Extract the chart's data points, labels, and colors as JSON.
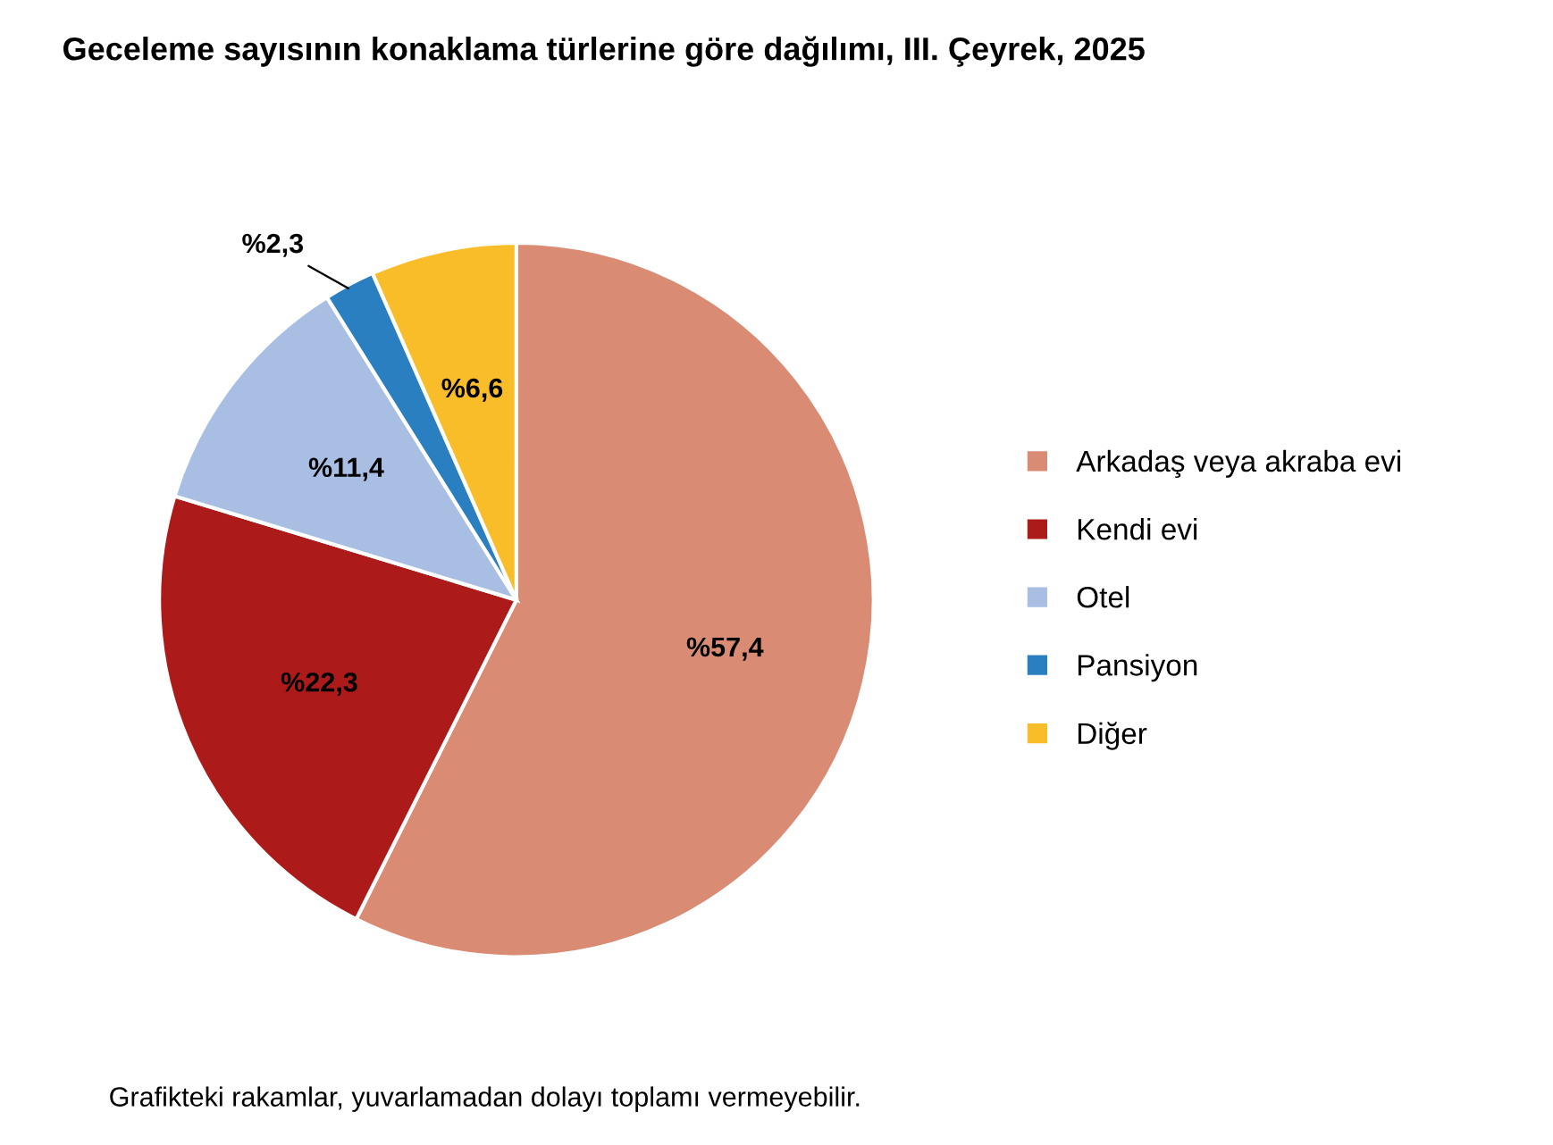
{
  "chart_data": {
    "type": "pie",
    "title": "Geceleme sayısının konaklama türlerine göre dağılımı, III. Çeyrek, 2025",
    "categories": [
      "Arkadaş veya akraba evi",
      "Kendi evi",
      "Otel",
      "Pansiyon",
      "Diğer"
    ],
    "values": [
      57.4,
      22.3,
      11.4,
      2.3,
      6.6
    ],
    "colors": [
      "#d98b74",
      "#ad1a1a",
      "#a8bfe3",
      "#2a7fc1",
      "#f9bd2a"
    ],
    "value_labels": [
      "%57,4",
      "%22,3",
      "%11,4",
      "%2,3",
      "%6,6"
    ],
    "legend": "right",
    "annotations": [
      "Grafikteki rakamlar, yuvarlamadan dolayı toplamı vermeyebilir."
    ]
  }
}
